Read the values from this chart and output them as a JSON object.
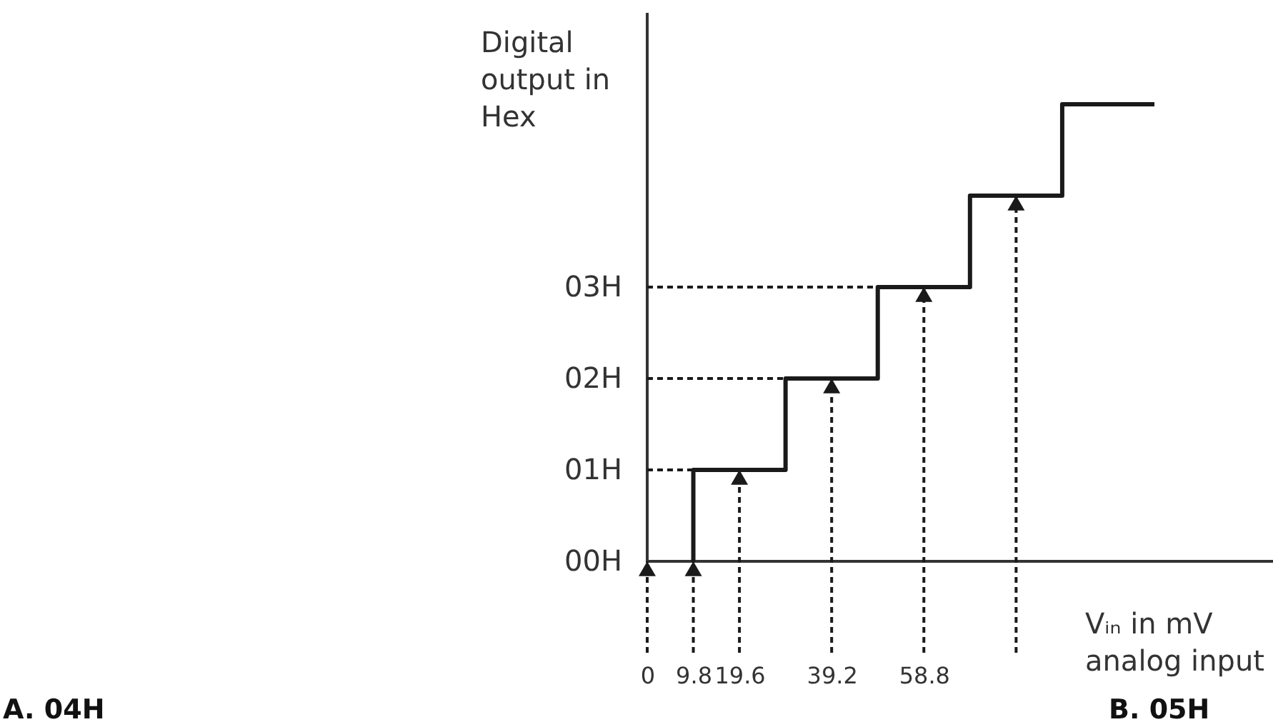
{
  "chart_data": {
    "type": "step",
    "xlabel": "Vᵢₙ in mV\nanalog input",
    "ylabel": "Digital\noutput in\nHex",
    "annotations": [
      "A. 04H",
      "B. 05H"
    ],
    "xlim": [
      0,
      133
    ],
    "ylim": [
      -1,
      6
    ],
    "xticks": [
      0,
      9.8,
      19.6,
      39.2,
      58.8,
      {
        "value": 78.4,
        "label": null
      }
    ],
    "yticks": [
      {
        "value": 0,
        "label": "00H"
      },
      {
        "value": 1,
        "label": "01H"
      },
      {
        "value": 2,
        "label": "02H"
      },
      {
        "value": 3,
        "label": "03H"
      }
    ],
    "series": [
      {
        "type": "line",
        "color": "#1a1a1a",
        "line_style": "dashed",
        "x": [
          0,
          9.8
        ],
        "values": [
          1,
          1
        ]
      },
      {
        "type": "line",
        "color": "#1a1a1a",
        "line_style": "dashed",
        "x": [
          0,
          29.4
        ],
        "values": [
          2,
          2
        ]
      },
      {
        "type": "line",
        "color": "#1a1a1a",
        "line_style": "dashed",
        "x": [
          0,
          49
        ],
        "values": [
          3,
          3
        ]
      },
      {
        "color": "#1a1a1a",
        "x": [
          9.8,
          9.8,
          29.4,
          49,
          68.6,
          88.2,
          107.8
        ],
        "values": [
          0,
          1,
          2,
          3,
          4,
          5,
          5
        ]
      }
    ]
  }
}
